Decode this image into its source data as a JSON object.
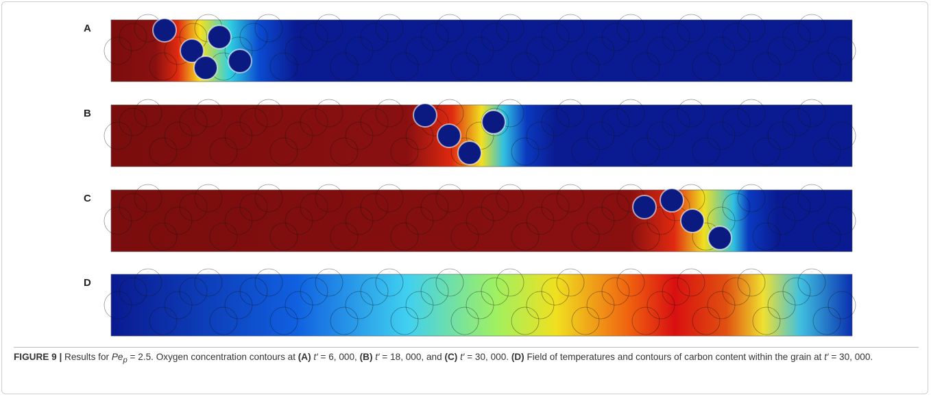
{
  "panels": [
    {
      "label": "A"
    },
    {
      "label": "B"
    },
    {
      "label": "C"
    },
    {
      "label": "D"
    }
  ],
  "caption": {
    "parts": [
      "FIGURE 9 |",
      " Results for ",
      "Pe",
      "p",
      " = 2.5. Oxygen concentration contours at ",
      "(A)",
      " t′",
      " = 6, 000, ",
      "(B)",
      " t′",
      " = 18, 000, and ",
      "(C)",
      " t′",
      " = 30, 000. ",
      "(D)",
      " Field of temperatures and contours of carbon content within the grain at ",
      " t′",
      " = 30, 000."
    ]
  }
}
